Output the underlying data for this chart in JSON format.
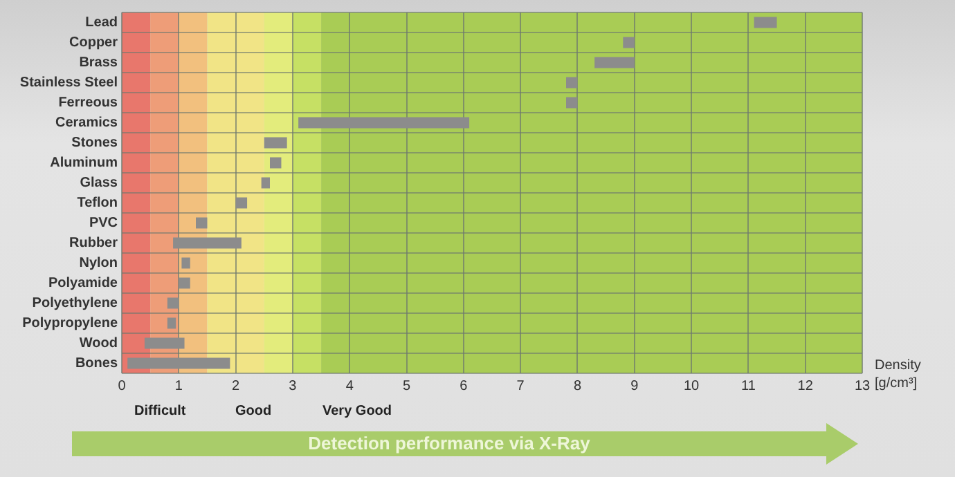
{
  "chart_data": {
    "type": "bar",
    "orientation": "horizontal",
    "xlabel": "Density [g/cm³]",
    "categories": [
      "Lead",
      "Copper",
      "Brass",
      "Stainless Steel",
      "Ferreous",
      "Ceramics",
      "Stones",
      "Aluminum",
      "Glass",
      "Teflon",
      "PVC",
      "Rubber",
      "Nylon",
      "Polyamide",
      "Polyethylene",
      "Polypropylene",
      "Wood",
      "Bones"
    ],
    "base": [
      11.1,
      8.8,
      8.3,
      7.8,
      7.8,
      3.1,
      2.5,
      2.6,
      2.45,
      2.0,
      1.3,
      0.9,
      1.05,
      1.0,
      0.8,
      0.8,
      0.4,
      0.1
    ],
    "values": [
      0.4,
      0.2,
      0.7,
      0.2,
      0.2,
      3.0,
      0.4,
      0.2,
      0.15,
      0.2,
      0.2,
      1.2,
      0.15,
      0.2,
      0.2,
      0.15,
      0.7,
      1.8
    ],
    "color": "#8c8c8c",
    "xlim": [
      0,
      13
    ],
    "xticks": [
      0,
      1,
      2,
      3,
      4,
      5,
      6,
      7,
      8,
      9,
      10,
      11,
      12,
      13
    ],
    "grid": true,
    "bands": [
      {
        "axis": "x",
        "from": 0,
        "to": 0.5,
        "color": "#e8776c"
      },
      {
        "axis": "x",
        "from": 0.5,
        "to": 1,
        "color": "#ee9d78"
      },
      {
        "axis": "x",
        "from": 1,
        "to": 1.5,
        "color": "#f2c07e"
      },
      {
        "axis": "x",
        "from": 1.5,
        "to": 2.5,
        "color": "#f1e486"
      },
      {
        "axis": "x",
        "from": 2.5,
        "to": 3,
        "color": "#e3ec7c"
      },
      {
        "axis": "x",
        "from": 3,
        "to": 3.5,
        "color": "#c6e064"
      },
      {
        "axis": "x",
        "from": 3.5,
        "to": 13,
        "color": "#a9cc55"
      }
    ],
    "annotations": [
      "Difficult",
      "Good",
      "Very Good",
      "Detection performance via X-Ray"
    ]
  }
}
